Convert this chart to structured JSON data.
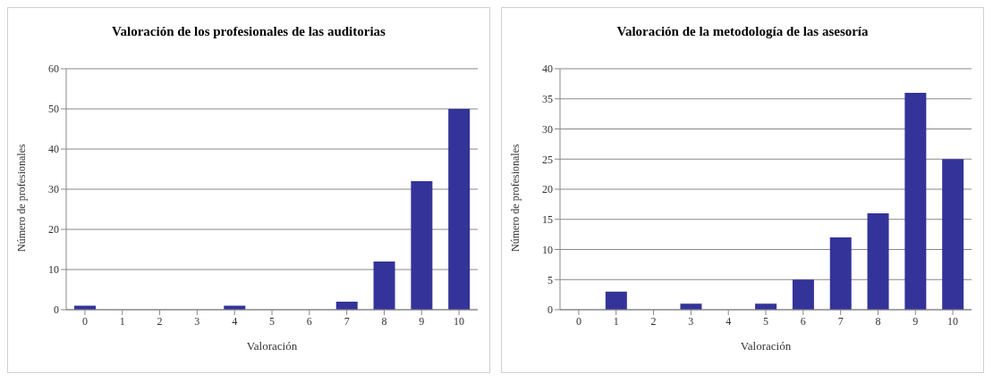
{
  "chart_data": [
    {
      "type": "bar",
      "title": "Valoración de los profesionales de las auditorias",
      "xlabel": "Valoración",
      "ylabel": "Número de profesionales",
      "categories": [
        "0",
        "1",
        "2",
        "3",
        "4",
        "5",
        "6",
        "7",
        "8",
        "9",
        "10"
      ],
      "values": [
        1,
        0,
        0,
        0,
        1,
        0,
        0,
        2,
        12,
        32,
        50
      ],
      "color": "#333399",
      "ylim": [
        0,
        60
      ],
      "yticks": [
        0,
        10,
        20,
        30,
        40,
        50,
        60
      ],
      "grid": "y"
    },
    {
      "type": "bar",
      "title": "Valoración de la metodología de las asesoría",
      "xlabel": "Valoración",
      "ylabel": "Número de profesionales",
      "categories": [
        "0",
        "1",
        "2",
        "3",
        "4",
        "5",
        "6",
        "7",
        "8",
        "9",
        "10"
      ],
      "values": [
        0,
        3,
        0,
        1,
        0,
        1,
        5,
        12,
        16,
        36,
        25
      ],
      "color": "#333399",
      "ylim": [
        0,
        40
      ],
      "yticks": [
        0,
        5,
        10,
        15,
        20,
        25,
        30,
        35,
        40
      ],
      "grid": "y"
    }
  ]
}
